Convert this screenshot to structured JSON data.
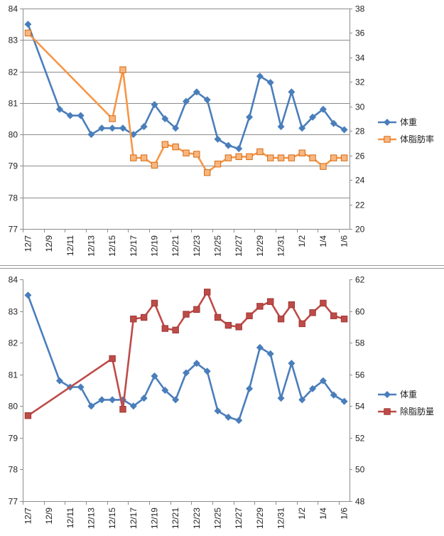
{
  "chart_data": [
    {
      "type": "line",
      "title": "",
      "categories": [
        "12/7",
        "12/8",
        "12/9",
        "12/10",
        "12/11",
        "12/12",
        "12/13",
        "12/14",
        "12/15",
        "12/16",
        "12/17",
        "12/18",
        "12/19",
        "12/20",
        "12/21",
        "12/22",
        "12/23",
        "12/24",
        "12/25",
        "12/26",
        "12/27",
        "12/28",
        "12/29",
        "12/30",
        "12/31",
        "1/1",
        "1/2",
        "1/3",
        "1/4",
        "1/5",
        "1/6"
      ],
      "x_tick_labels": [
        "12/7",
        "12/9",
        "12/11",
        "12/13",
        "12/15",
        "12/17",
        "12/19",
        "12/21",
        "12/23",
        "12/25",
        "12/27",
        "12/29",
        "12/31",
        "1/2",
        "1/4",
        "1/6"
      ],
      "y_left": {
        "min": 77,
        "max": 84,
        "step": 1,
        "ticks": [
          "77",
          "78",
          "79",
          "80",
          "81",
          "82",
          "83",
          "84"
        ]
      },
      "y_right": {
        "min": 20,
        "max": 38,
        "step": 2,
        "ticks": [
          "20",
          "22",
          "24",
          "26",
          "28",
          "30",
          "32",
          "34",
          "36",
          "38"
        ]
      },
      "grid": "horizontal",
      "legend_position": "right",
      "series": [
        {
          "name": "体重",
          "axis": "left",
          "color": "#4a7ebb",
          "marker": "diamond",
          "values": [
            83.5,
            null,
            null,
            80.8,
            80.6,
            80.6,
            80.0,
            80.2,
            80.2,
            80.2,
            80.0,
            80.25,
            80.95,
            80.5,
            80.2,
            81.05,
            81.35,
            81.1,
            79.85,
            79.65,
            79.55,
            80.55,
            81.85,
            81.65,
            80.25,
            81.35,
            80.2,
            80.55,
            80.8,
            80.35,
            80.15
          ]
        },
        {
          "name": "体脂肪率",
          "axis": "right",
          "color": "#f79646",
          "marker": "square",
          "values": [
            36.0,
            null,
            null,
            null,
            null,
            null,
            null,
            null,
            29.0,
            33.0,
            25.8,
            25.8,
            25.2,
            26.9,
            26.7,
            26.2,
            26.1,
            24.6,
            25.3,
            25.8,
            25.9,
            25.9,
            26.3,
            25.8,
            25.8,
            25.8,
            26.2,
            25.8,
            25.1,
            25.8,
            25.8
          ]
        }
      ]
    },
    {
      "type": "line",
      "title": "",
      "categories": [
        "12/7",
        "12/8",
        "12/9",
        "12/10",
        "12/11",
        "12/12",
        "12/13",
        "12/14",
        "12/15",
        "12/16",
        "12/17",
        "12/18",
        "12/19",
        "12/20",
        "12/21",
        "12/22",
        "12/23",
        "12/24",
        "12/25",
        "12/26",
        "12/27",
        "12/28",
        "12/29",
        "12/30",
        "12/31",
        "1/1",
        "1/2",
        "1/3",
        "1/4",
        "1/5",
        "1/6"
      ],
      "x_tick_labels": [
        "12/7",
        "12/9",
        "12/11",
        "12/13",
        "12/15",
        "12/17",
        "12/19",
        "12/21",
        "12/23",
        "12/25",
        "12/27",
        "12/29",
        "12/31",
        "1/2",
        "1/4",
        "1/6"
      ],
      "y_left": {
        "min": 77,
        "max": 84,
        "step": 1,
        "ticks": [
          "77",
          "78",
          "79",
          "80",
          "81",
          "82",
          "83",
          "84"
        ]
      },
      "y_right": {
        "min": 48,
        "max": 62,
        "step": 2,
        "ticks": [
          "48",
          "50",
          "52",
          "54",
          "56",
          "58",
          "60",
          "62"
        ]
      },
      "grid": "none",
      "legend_position": "right",
      "series": [
        {
          "name": "体重",
          "axis": "left",
          "color": "#4a7ebb",
          "marker": "diamond",
          "values": [
            83.5,
            null,
            null,
            80.8,
            80.6,
            80.6,
            80.0,
            80.2,
            80.2,
            80.2,
            80.0,
            80.25,
            80.95,
            80.5,
            80.2,
            81.05,
            81.35,
            81.1,
            79.85,
            79.65,
            79.55,
            80.55,
            81.85,
            81.65,
            80.25,
            81.35,
            80.2,
            80.55,
            80.8,
            80.35,
            80.15
          ]
        },
        {
          "name": "除脂肪量",
          "axis": "right",
          "color": "#be4b48",
          "marker": "square",
          "values": [
            53.4,
            null,
            null,
            null,
            null,
            null,
            null,
            null,
            57.0,
            53.8,
            59.5,
            59.6,
            60.5,
            58.9,
            58.8,
            59.8,
            60.1,
            61.2,
            59.6,
            59.1,
            59.0,
            59.7,
            60.3,
            60.6,
            59.5,
            60.4,
            59.2,
            59.9,
            60.5,
            59.7,
            59.5
          ]
        }
      ]
    }
  ]
}
